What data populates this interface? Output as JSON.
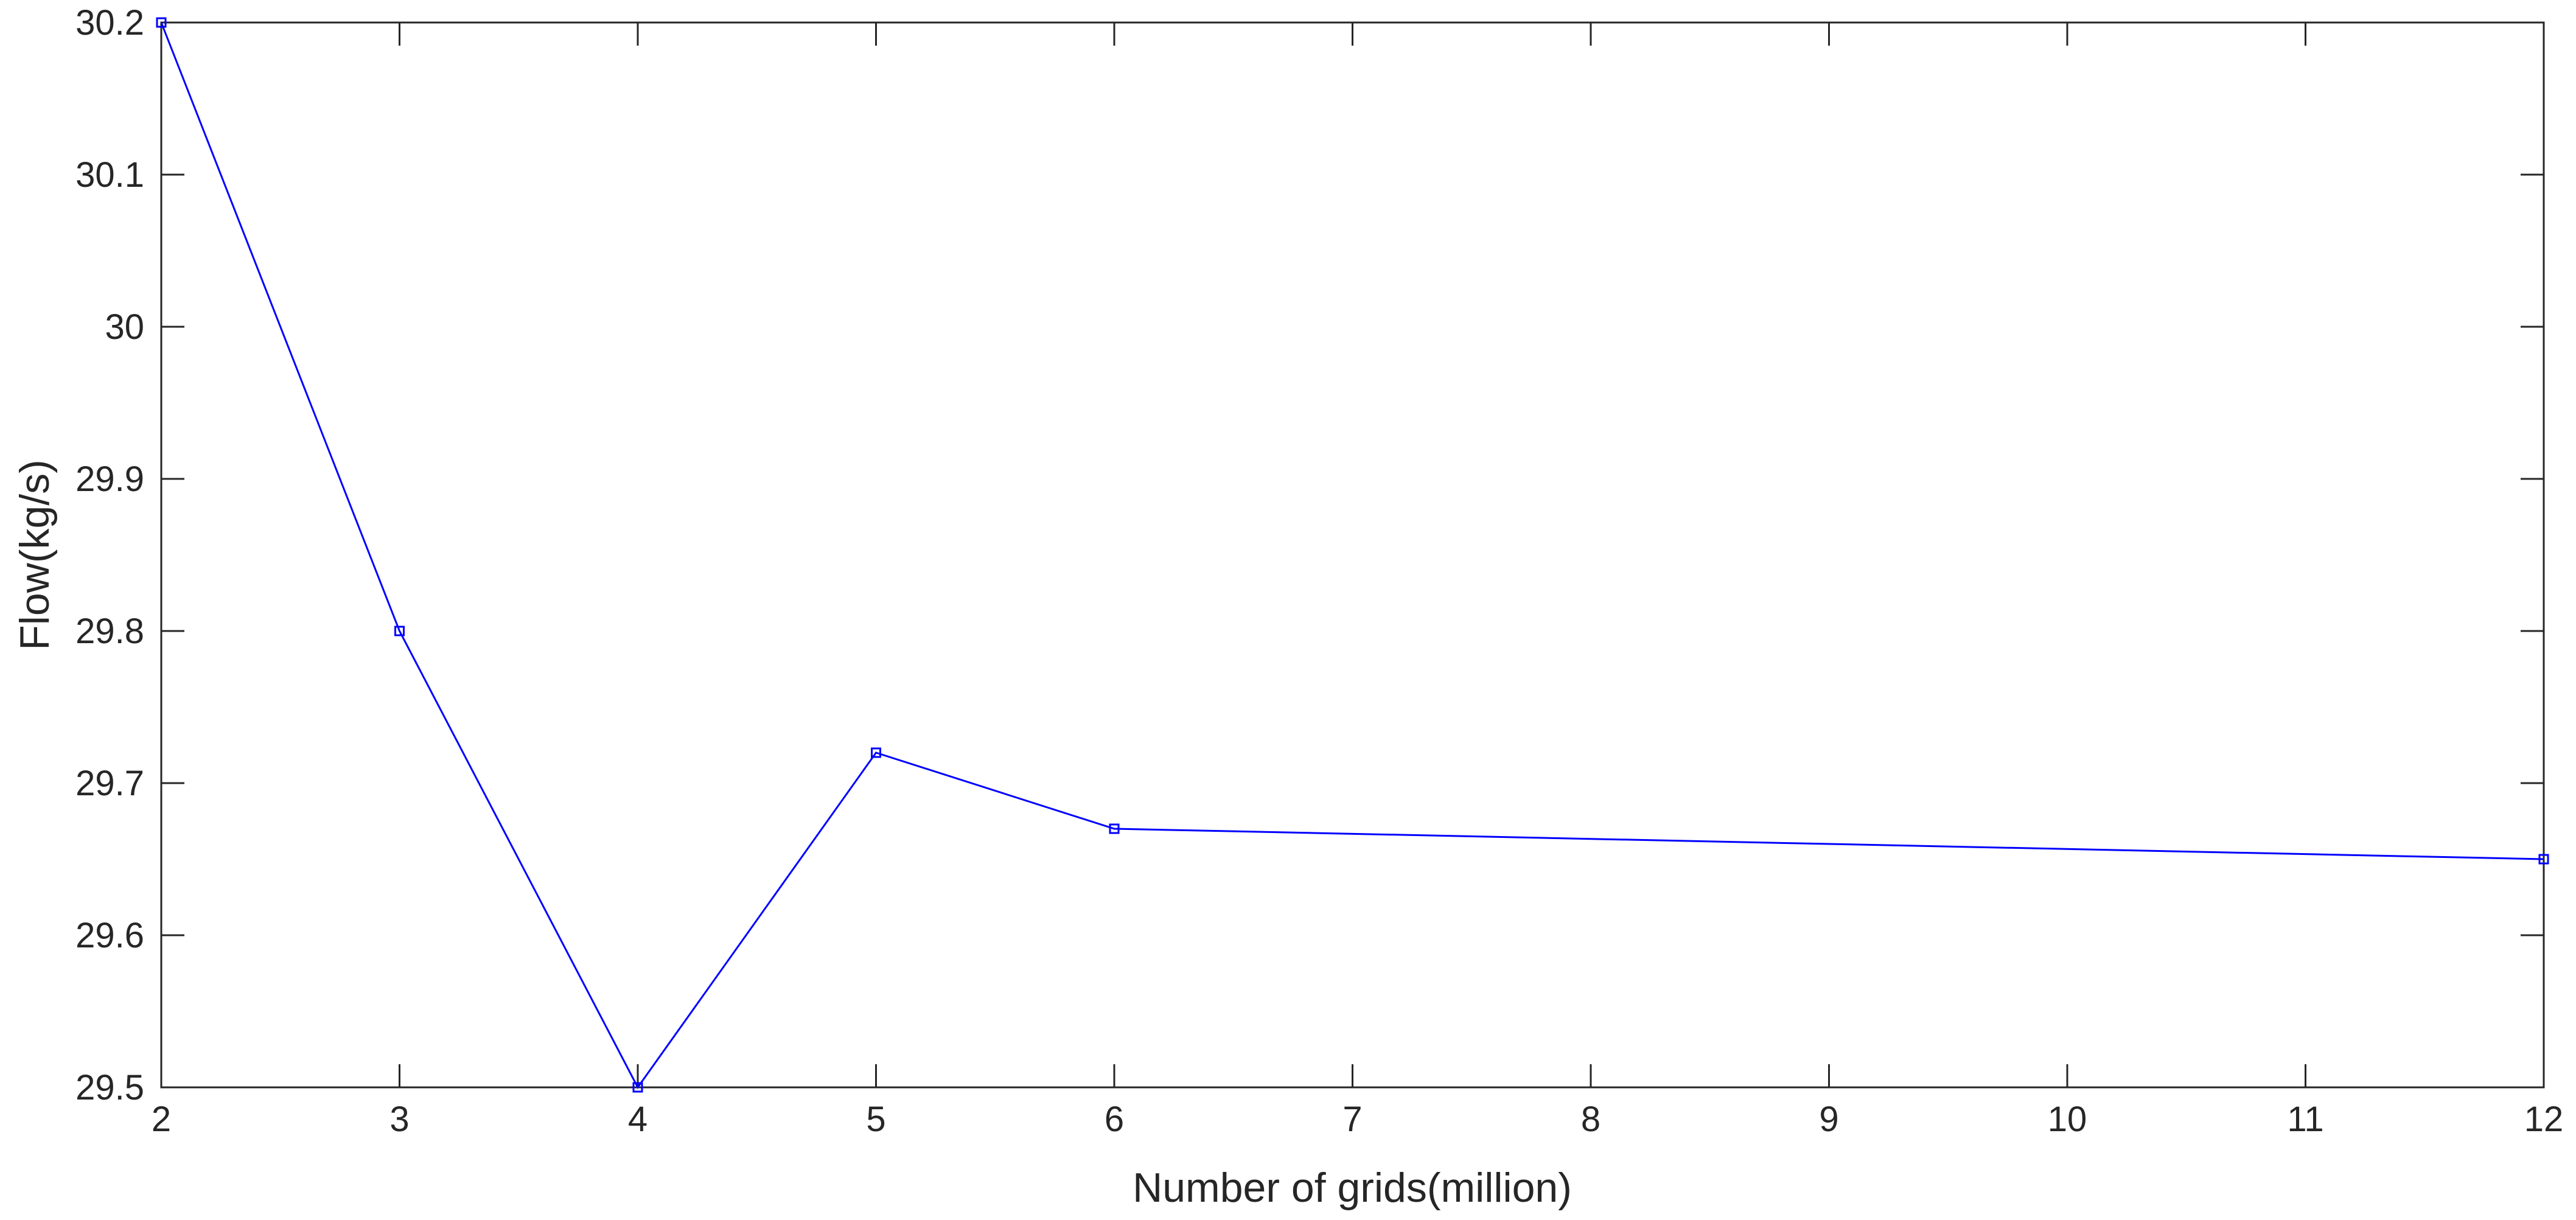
{
  "chart_data": {
    "type": "line",
    "title": "",
    "xlabel": "Number of grids(million)",
    "ylabel": "Flow(kg/s)",
    "xlim": [
      2,
      12
    ],
    "ylim": [
      29.5,
      30.2
    ],
    "grid": false,
    "x_ticks": [
      2,
      3,
      4,
      5,
      6,
      7,
      8,
      9,
      10,
      11,
      12
    ],
    "x_tick_labels": [
      "2",
      "3",
      "4",
      "5",
      "6",
      "7",
      "8",
      "9",
      "10",
      "11",
      "12"
    ],
    "y_ticks": [
      29.5,
      29.6,
      29.7,
      29.8,
      29.9,
      30.0,
      30.1,
      30.2
    ],
    "y_tick_labels": [
      "29.5",
      "29.6",
      "29.7",
      "29.8",
      "29.9",
      "30",
      "30.1",
      "30.2"
    ],
    "series": [
      {
        "color": "#0000ff",
        "marker": "square",
        "x": [
          2,
          3,
          4,
          5,
          6,
          12
        ],
        "y": [
          30.2,
          29.8,
          29.5,
          29.72,
          29.67,
          29.65
        ]
      }
    ]
  }
}
